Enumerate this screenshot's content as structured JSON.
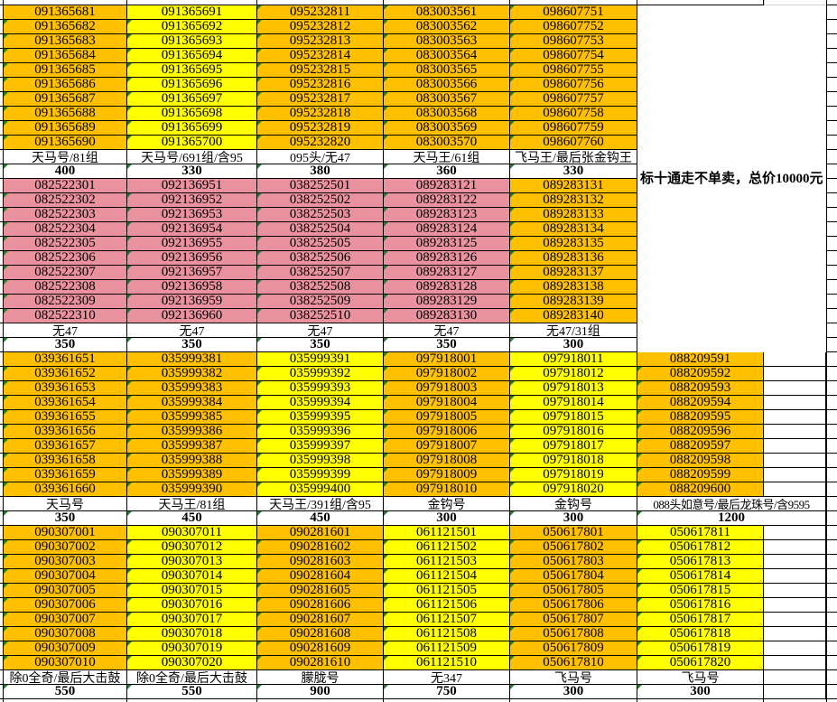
{
  "side_note": {
    "text": "标十通走不单卖，总价10000元"
  },
  "colors": {
    "orange": "#FFC000",
    "yellow": "#FFFF00",
    "pink": "#E9929E",
    "border": "#000000",
    "triangle_green": "#1E8228",
    "gridline_gray": "#CFCFCF"
  },
  "groups": [
    {
      "name": "group-1",
      "right_column": "none",
      "merge_label_into_right": false,
      "columns": [
        {
          "fill": "orange",
          "label": "天马号/81组",
          "price": "400",
          "first_row_triangle": false,
          "tight": false,
          "numbers": [
            "091365681",
            "091365682",
            "091365683",
            "091365684",
            "091365685",
            "091365686",
            "091365687",
            "091365688",
            "091365689",
            "091365690"
          ]
        },
        {
          "fill": "yellow",
          "label": "天马号/691组/含95",
          "price": "330",
          "first_row_triangle": false,
          "tight": false,
          "numbers": [
            "091365691",
            "091365692",
            "091365693",
            "091365694",
            "091365695",
            "091365696",
            "091365697",
            "091365698",
            "091365699",
            "091365700"
          ]
        },
        {
          "fill": "orange",
          "label": "095头/无47",
          "price": "380",
          "first_row_triangle": true,
          "tight": false,
          "numbers": [
            "095232811",
            "095232812",
            "095232813",
            "095232814",
            "095232815",
            "095232816",
            "095232817",
            "095232818",
            "095232819",
            "095232820"
          ]
        },
        {
          "fill": "orange",
          "label": "天马王/61组",
          "price": "360",
          "first_row_triangle": true,
          "tight": false,
          "numbers": [
            "083003561",
            "083003562",
            "083003563",
            "083003564",
            "083003565",
            "083003566",
            "083003567",
            "083003568",
            "083003569",
            "083003570"
          ]
        },
        {
          "fill": "orange",
          "label": "飞马王/最后张金钩王",
          "price": "330",
          "first_row_triangle": true,
          "tight": false,
          "numbers": [
            "098607751",
            "098607752",
            "098607753",
            "098607754",
            "098607755",
            "098607756",
            "098607757",
            "098607758",
            "098607759",
            "098607760"
          ]
        }
      ]
    },
    {
      "name": "group-2",
      "right_column": "none",
      "merge_label_into_right": false,
      "columns": [
        {
          "fill": "pink",
          "label": "无47",
          "price": "350",
          "first_row_triangle": false,
          "tight": false,
          "numbers": [
            "082522301",
            "082522302",
            "082522303",
            "082522304",
            "082522305",
            "082522306",
            "082522307",
            "082522308",
            "082522309",
            "082522310"
          ]
        },
        {
          "fill": "pink",
          "label": "无47",
          "price": "350",
          "first_row_triangle": false,
          "tight": false,
          "numbers": [
            "092136951",
            "092136952",
            "092136953",
            "092136954",
            "092136955",
            "092136956",
            "092136957",
            "092136958",
            "092136959",
            "092136960"
          ]
        },
        {
          "fill": "pink",
          "label": "无47",
          "price": "350",
          "first_row_triangle": false,
          "tight": false,
          "numbers": [
            "038252501",
            "038252502",
            "038252503",
            "038252504",
            "038252505",
            "038252506",
            "038252507",
            "038252508",
            "038252509",
            "038252510"
          ]
        },
        {
          "fill": "pink",
          "label": "无47",
          "price": "350",
          "first_row_triangle": false,
          "tight": false,
          "numbers": [
            "089283121",
            "089283122",
            "089283123",
            "089283124",
            "089283125",
            "089283126",
            "089283127",
            "089283128",
            "089283129",
            "089283130"
          ]
        },
        {
          "fill": "orange",
          "label": "无47/31组",
          "price": "300",
          "first_row_triangle": false,
          "tight": false,
          "numbers": [
            "089283131",
            "089283132",
            "089283133",
            "089283134",
            "089283135",
            "089283136",
            "089283137",
            "089283138",
            "089283139",
            "089283140"
          ]
        }
      ]
    },
    {
      "name": "group-3",
      "right_column": "data",
      "merge_label_into_right": true,
      "columns": [
        {
          "fill": "orange",
          "label": "天马号",
          "price": "350",
          "first_row_triangle": false,
          "tight": false,
          "numbers": [
            "039361651",
            "039361652",
            "039361653",
            "039361654",
            "039361655",
            "039361656",
            "039361657",
            "039361658",
            "039361659",
            "039361660"
          ]
        },
        {
          "fill": "orange",
          "label": "天马王/81组",
          "price": "450",
          "first_row_triangle": false,
          "tight": false,
          "numbers": [
            "035999381",
            "035999382",
            "035999383",
            "035999384",
            "035999385",
            "035999386",
            "035999387",
            "035999388",
            "035999389",
            "035999390"
          ]
        },
        {
          "fill": "yellow",
          "label": "天马王/391组/含95",
          "price": "450",
          "first_row_triangle": false,
          "tight": false,
          "numbers": [
            "035999391",
            "035999392",
            "035999393",
            "035999394",
            "035999395",
            "035999396",
            "035999397",
            "035999398",
            "035999399",
            "035999400"
          ]
        },
        {
          "fill": "orange",
          "label": "金钩号",
          "price": "300",
          "first_row_triangle": true,
          "tight": false,
          "numbers": [
            "097918001",
            "097918002",
            "097918003",
            "097918004",
            "097918005",
            "097918006",
            "097918007",
            "097918008",
            "097918009",
            "097918010"
          ]
        },
        {
          "fill": "yellow",
          "label": "金钩号",
          "price": "300",
          "first_row_triangle": false,
          "tight": false,
          "numbers": [
            "097918011",
            "097918012",
            "097918013",
            "097918014",
            "097918015",
            "097918016",
            "097918017",
            "097918018",
            "097918019",
            "097918020"
          ]
        },
        {
          "fill": "orange",
          "label": "088头如意号/最后龙珠号/含9595",
          "price": "1200",
          "first_row_triangle": false,
          "tight": true,
          "numbers": [
            "088209591",
            "088209592",
            "088209593",
            "088209594",
            "088209595",
            "088209596",
            "088209597",
            "088209598",
            "088209599",
            "088209600"
          ]
        }
      ]
    },
    {
      "name": "group-4",
      "right_column": "all",
      "merge_label_into_right": false,
      "columns": [
        {
          "fill": "orange",
          "label": "除0全奇/最后大击鼓",
          "price": "550",
          "first_row_triangle": false,
          "tight": false,
          "numbers": [
            "090307001",
            "090307002",
            "090307003",
            "090307004",
            "090307005",
            "090307006",
            "090307007",
            "090307008",
            "090307009",
            "090307010"
          ]
        },
        {
          "fill": "yellow",
          "label": "除0全奇/最后大击鼓",
          "price": "550",
          "first_row_triangle": false,
          "tight": false,
          "numbers": [
            "090307011",
            "090307012",
            "090307013",
            "090307014",
            "090307015",
            "090307016",
            "090307017",
            "090307018",
            "090307019",
            "090307020"
          ]
        },
        {
          "fill": "orange",
          "label": "朦胧号",
          "price": "900",
          "first_row_triangle": false,
          "tight": false,
          "numbers": [
            "090281601",
            "090281602",
            "090281603",
            "090281604",
            "090281605",
            "090281606",
            "090281607",
            "090281608",
            "090281609",
            "090281610"
          ]
        },
        {
          "fill": "yellow",
          "label": "无347",
          "price": "750",
          "first_row_triangle": false,
          "tight": false,
          "numbers": [
            "061121501",
            "061121502",
            "061121503",
            "061121504",
            "061121505",
            "061121506",
            "061121507",
            "061121508",
            "061121509",
            "061121510"
          ]
        },
        {
          "fill": "orange",
          "label": "飞马号",
          "price": "300",
          "first_row_triangle": false,
          "tight": false,
          "numbers": [
            "050617801",
            "050617802",
            "050617803",
            "050617804",
            "050617805",
            "050617806",
            "050617807",
            "050617808",
            "050617809",
            "050617810"
          ]
        },
        {
          "fill": "yellow",
          "label": "飞马号",
          "price": "300",
          "first_row_triangle": false,
          "tight": false,
          "numbers": [
            "050617811",
            "050617812",
            "050617813",
            "050617814",
            "050617815",
            "050617816",
            "050617817",
            "050617818",
            "050617819",
            "050617820"
          ]
        }
      ]
    }
  ]
}
